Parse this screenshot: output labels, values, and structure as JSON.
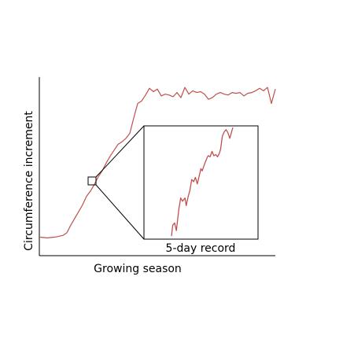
{
  "chart_data": {
    "type": "line",
    "title": "",
    "xlabel": "Growing season",
    "ylabel": "Circumference increment",
    "grid": false,
    "legend": "none",
    "colors": {
      "line": "#c0504d",
      "axes": "#000000",
      "box": "#000000"
    },
    "series": [
      {
        "x": [
          0,
          10,
          20,
          25,
          30,
          35,
          40,
          45,
          50,
          55,
          60,
          65,
          70,
          75,
          80,
          85,
          90,
          95,
          100,
          105,
          110,
          115,
          120,
          125,
          130,
          135,
          140,
          145,
          150,
          155,
          160,
          165,
          170,
          175,
          180,
          185,
          190,
          195,
          200,
          205,
          210,
          215,
          220,
          225,
          230,
          235,
          240,
          245,
          250,
          255,
          260,
          265,
          270,
          275,
          280,
          285,
          290,
          295,
          300
        ],
        "values": [
          8,
          7,
          8,
          9,
          10,
          13,
          22,
          30,
          38,
          46,
          56,
          62,
          70,
          79,
          86,
          95,
          103,
          110,
          117,
          120,
          124,
          130,
          148,
          165,
          168,
          175,
          183,
          179,
          182,
          174,
          176,
          175,
          173,
          178,
          172,
          184,
          176,
          180,
          178,
          179,
          176,
          170,
          172,
          176,
          178,
          176,
          175,
          178,
          177,
          178,
          174,
          177,
          178,
          180,
          183,
          180,
          184,
          165,
          182
        ]
      }
    ],
    "inset": {
      "label": "5-day record",
      "x": [
        0,
        0.02,
        0.05,
        0.08,
        0.12,
        0.15,
        0.18,
        0.22,
        0.24,
        0.27,
        0.3,
        0.33,
        0.36,
        0.39,
        0.42,
        0.45,
        0.48,
        0.5,
        0.55,
        0.58,
        0.6,
        0.63,
        0.66,
        0.69,
        0.72,
        0.75,
        0.78,
        0.8,
        0.83,
        0.86,
        0.89,
        0.92,
        0.95,
        1.0
      ],
      "values": [
        0,
        0.1,
        0.12,
        0.05,
        0.25,
        0.35,
        0.32,
        0.35,
        0.28,
        0.36,
        0.42,
        0.52,
        0.5,
        0.54,
        0.48,
        0.55,
        0.62,
        0.6,
        0.68,
        0.72,
        0.74,
        0.73,
        0.78,
        0.74,
        0.75,
        0.73,
        0.76,
        0.8,
        0.92,
        0.96,
        0.98,
        0.95,
        0.9,
        1.0
      ]
    }
  }
}
